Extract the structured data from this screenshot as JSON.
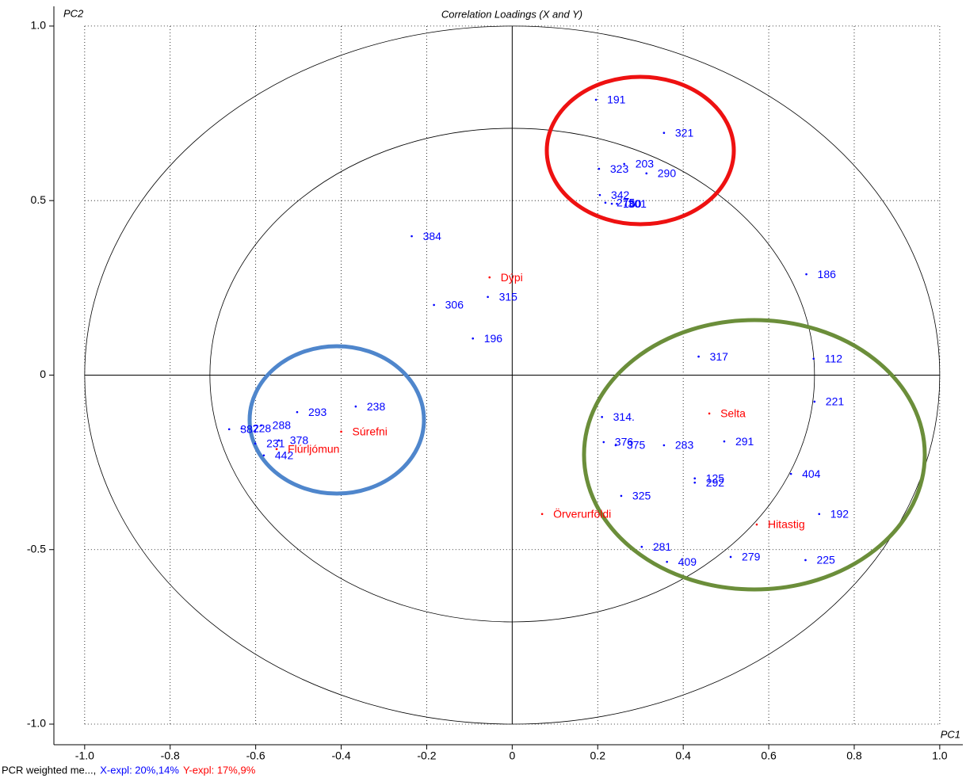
{
  "chart_data": {
    "type": "scatter",
    "title": "Correlation Loadings (X and Y)",
    "x_label": "PC1",
    "y_label": "PC2",
    "footer": [
      "PCR weighted me...,",
      "X-expl: 20%,14%",
      "Y-expl: 17%,9%"
    ],
    "footer_colors": [
      "#000000",
      "#0000ff",
      "#ff0000"
    ],
    "xlim": [
      -1.072,
      1.054
    ],
    "ylim": [
      -1.059,
      1.052
    ],
    "xticks": [
      {
        "value": -1,
        "label": "-1.0"
      },
      -0.8,
      -0.6,
      -0.4,
      -0.2,
      0,
      0.2,
      0.4,
      0.6,
      0.8,
      {
        "value": 1,
        "label": "1.0"
      }
    ],
    "yticks": [
      {
        "value": -1,
        "label": "-1.0"
      },
      -0.5,
      0,
      0.5,
      {
        "value": 1,
        "label": "1.0"
      }
    ],
    "grid": true,
    "circles": [
      1,
      0.7071
    ],
    "series": [
      {
        "color": "#0000ff",
        "labels": [
          "191",
          "321",
          "203",
          "323",
          "290",
          "342",
          "275",
          "160",
          "301",
          "384",
          "315",
          "306",
          "196",
          "186",
          "317",
          "112",
          "221",
          "293",
          "238",
          "288",
          "228",
          "387",
          "231",
          "378",
          "442",
          "314.",
          "376",
          "375",
          "283",
          "291",
          "125",
          "292",
          "404",
          "325",
          "192",
          "281",
          "409",
          "279",
          "225"
        ],
        "x": [
          0.196,
          0.355,
          0.262,
          0.203,
          0.314,
          0.205,
          0.218,
          0.233,
          0.245,
          -0.235,
          -0.057,
          -0.183,
          -0.092,
          0.688,
          0.436,
          0.705,
          0.707,
          -0.503,
          -0.366,
          -0.587,
          -0.633,
          -0.662,
          -0.601,
          -0.546,
          -0.581,
          0.21,
          0.214,
          0.242,
          0.355,
          0.496,
          0.427,
          0.427,
          0.652,
          0.255,
          0.718,
          0.303,
          0.362,
          0.511,
          0.686
        ],
        "y": [
          0.789,
          0.694,
          0.605,
          0.591,
          0.578,
          0.516,
          0.494,
          0.491,
          0.491,
          0.398,
          0.224,
          0.201,
          0.105,
          0.289,
          0.053,
          0.047,
          -0.076,
          -0.106,
          -0.09,
          -0.144,
          -0.153,
          -0.155,
          -0.196,
          -0.187,
          -0.23,
          -0.12,
          -0.192,
          -0.201,
          -0.201,
          -0.19,
          -0.296,
          -0.308,
          -0.283,
          -0.346,
          -0.398,
          -0.492,
          -0.535,
          -0.521,
          -0.53
        ]
      },
      {
        "color": "#ff0000",
        "labels": [
          "Dýpi",
          "Súrefni",
          "Flúrljómun",
          "Selta",
          "Örverurföldi",
          "Hitastig"
        ],
        "x": [
          -0.053,
          -0.4,
          -0.551,
          0.461,
          0.07,
          0.572
        ],
        "y": [
          0.28,
          -0.162,
          -0.212,
          -0.11,
          -0.398,
          -0.428
        ]
      }
    ]
  }
}
